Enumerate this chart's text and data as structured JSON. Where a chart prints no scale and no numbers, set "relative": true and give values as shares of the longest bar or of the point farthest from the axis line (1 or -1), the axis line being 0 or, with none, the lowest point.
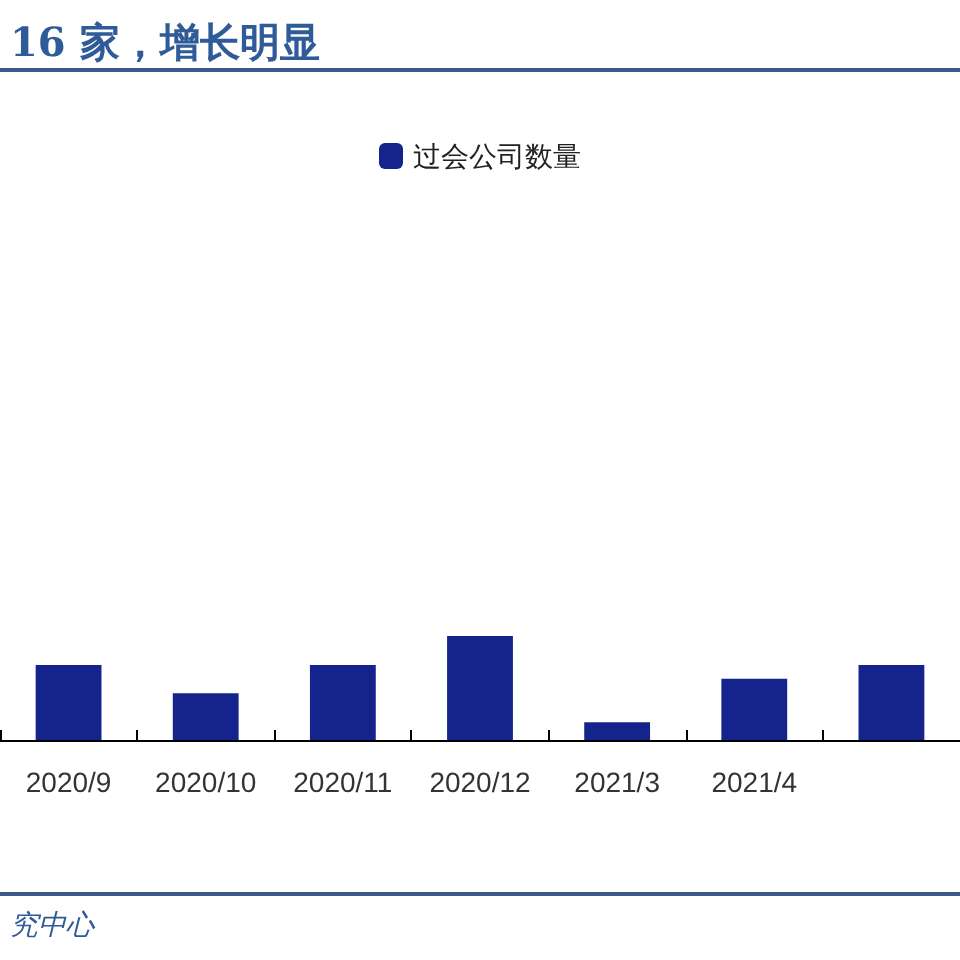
{
  "chart_data": {
    "type": "bar",
    "title": "16 家，增长明显",
    "annotations": [
      "究中心"
    ],
    "categories": [
      "2020/9",
      "2020/10",
      "2020/11",
      "2020/12",
      "2021/3",
      "2021/4",
      null
    ],
    "series": [
      {
        "name": "过会公司数量",
        "color": "#15248c",
        "values": [
          0.72,
          0.45,
          0.72,
          1,
          0.17,
          0.59,
          0.72
        ]
      }
    ],
    "relative": true,
    "legend": "top"
  }
}
